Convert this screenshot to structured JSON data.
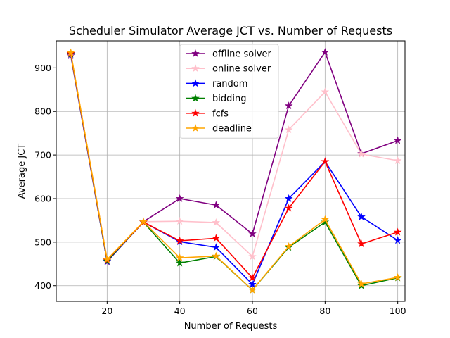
{
  "chart_data": {
    "type": "line",
    "title": "Scheduler Simulator Average JCT vs. Number of Requests",
    "xlabel": "Number of Requests",
    "ylabel": "Average JCT",
    "x": [
      10,
      20,
      30,
      40,
      50,
      60,
      70,
      80,
      90,
      100
    ],
    "xlim": [
      6,
      102
    ],
    "ylim": [
      364,
      962
    ],
    "xticks": [
      20,
      40,
      60,
      80,
      100
    ],
    "yticks": [
      400,
      500,
      600,
      700,
      800,
      900
    ],
    "grid": true,
    "legend_position": "top-center",
    "marker": "star",
    "series": [
      {
        "name": "offline solver",
        "color": "#800080",
        "values": [
          928,
          455,
          547,
          600,
          585,
          519,
          813,
          936,
          703,
          733
        ]
      },
      {
        "name": "online solver",
        "color": "#ffc0cb",
        "values": [
          930,
          458,
          547,
          548,
          545,
          467,
          758,
          845,
          702,
          687
        ]
      },
      {
        "name": "random",
        "color": "#0000ff",
        "values": [
          931,
          456,
          546,
          501,
          488,
          403,
          600,
          685,
          558,
          504
        ]
      },
      {
        "name": "bidding",
        "color": "#008000",
        "values": [
          932,
          457,
          546,
          452,
          467,
          390,
          488,
          546,
          400,
          418
        ]
      },
      {
        "name": "fcfs",
        "color": "#ff0000",
        "values": [
          933,
          459,
          546,
          503,
          509,
          418,
          578,
          685,
          496,
          523
        ]
      },
      {
        "name": "deadline",
        "color": "#ffa500",
        "values": [
          935,
          460,
          547,
          464,
          468,
          390,
          490,
          552,
          404,
          419
        ]
      }
    ]
  }
}
